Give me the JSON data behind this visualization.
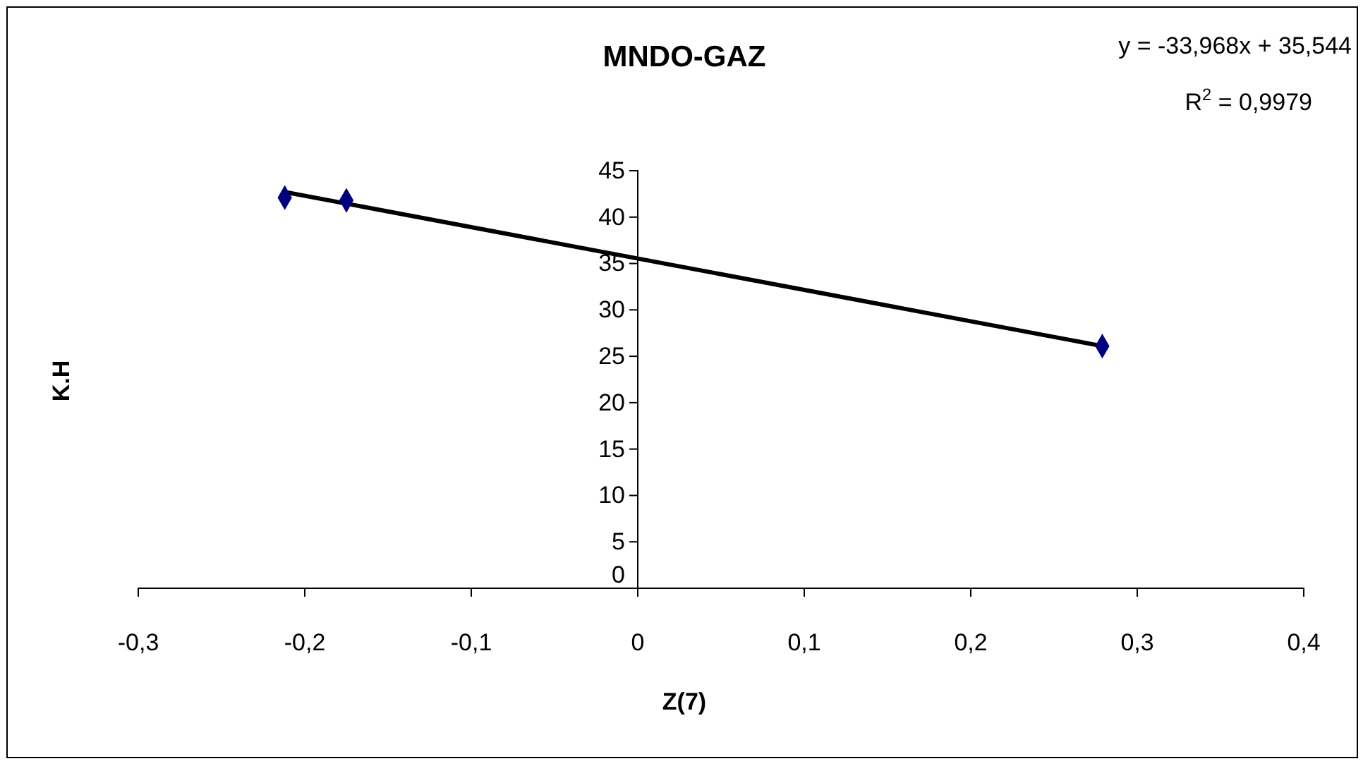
{
  "chart_data": {
    "type": "scatter",
    "title": "MNDO-GAZ",
    "xlabel": "Z(7)",
    "ylabel": "K.H",
    "annotations": [
      "y = -33,968x + 35,544",
      "R$^{2}$ = 0,9979"
    ],
    "xlim": [
      -0.3,
      0.4
    ],
    "ylim": [
      0,
      45
    ],
    "xticks": [
      {
        "value": -0.3,
        "label": "-0,3"
      },
      {
        "value": -0.2,
        "label": "-0,2"
      },
      {
        "value": -0.1,
        "label": "-0,1"
      },
      0,
      {
        "value": 0.1,
        "label": "0,1"
      },
      {
        "value": 0.2,
        "label": "0,2"
      },
      {
        "value": 0.3,
        "label": "0,3"
      },
      {
        "value": 0.4,
        "label": "0,4"
      }
    ],
    "yticks": [
      0,
      5,
      10,
      15,
      20,
      25,
      30,
      35,
      40,
      45
    ],
    "grid": false,
    "series": [
      {
        "type": "scatter",
        "marker": "diamond",
        "color": "#000080",
        "x": [
          -0.212,
          -0.175,
          0.279
        ],
        "values": [
          42.1,
          41.8,
          26.1
        ]
      },
      {
        "type": "line",
        "marker": "none",
        "line_style": "solid",
        "color": "#000000",
        "x": [
          -0.212,
          0.279
        ],
        "values": [
          42.7,
          26.1
        ]
      }
    ]
  }
}
